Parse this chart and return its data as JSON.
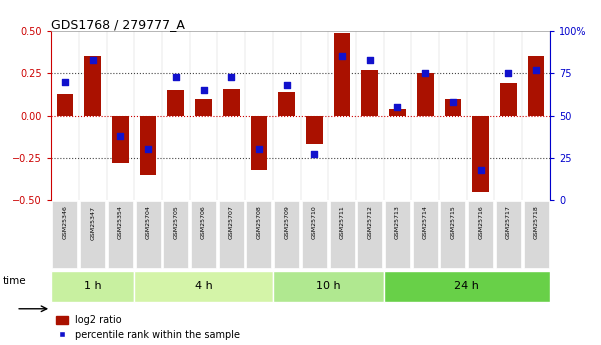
{
  "title": "GDS1768 / 279777_A",
  "samples": [
    "GSM25346",
    "GSM25347",
    "GSM25354",
    "GSM25704",
    "GSM25705",
    "GSM25706",
    "GSM25707",
    "GSM25708",
    "GSM25709",
    "GSM25710",
    "GSM25711",
    "GSM25712",
    "GSM25713",
    "GSM25714",
    "GSM25715",
    "GSM25716",
    "GSM25717",
    "GSM25718"
  ],
  "log2_ratio": [
    0.13,
    0.35,
    -0.28,
    -0.35,
    0.15,
    0.1,
    0.16,
    -0.32,
    0.14,
    -0.17,
    0.49,
    0.27,
    0.04,
    0.25,
    0.1,
    -0.45,
    0.19,
    0.35
  ],
  "pct_rank": [
    70,
    83,
    38,
    30,
    73,
    65,
    73,
    30,
    68,
    27,
    85,
    83,
    55,
    75,
    58,
    18,
    75,
    77
  ],
  "groups": [
    {
      "label": "1 h",
      "start": 0,
      "end": 3
    },
    {
      "label": "4 h",
      "start": 3,
      "end": 8
    },
    {
      "label": "10 h",
      "start": 8,
      "end": 12
    },
    {
      "label": "24 h",
      "start": 12,
      "end": 18
    }
  ],
  "group_colors": [
    "#c8f0a0",
    "#d4f4a8",
    "#b0e890",
    "#68d048"
  ],
  "ylim_left": [
    -0.5,
    0.5
  ],
  "ylim_right": [
    0,
    100
  ],
  "bar_color": "#aa1100",
  "dot_color": "#1111cc",
  "axis_left_color": "#cc0000",
  "axis_right_color": "#0000cc",
  "tick_label_bg": "#d0d0d0",
  "legend_labels": [
    "log2 ratio",
    "percentile rank within the sample"
  ],
  "time_label": "time"
}
